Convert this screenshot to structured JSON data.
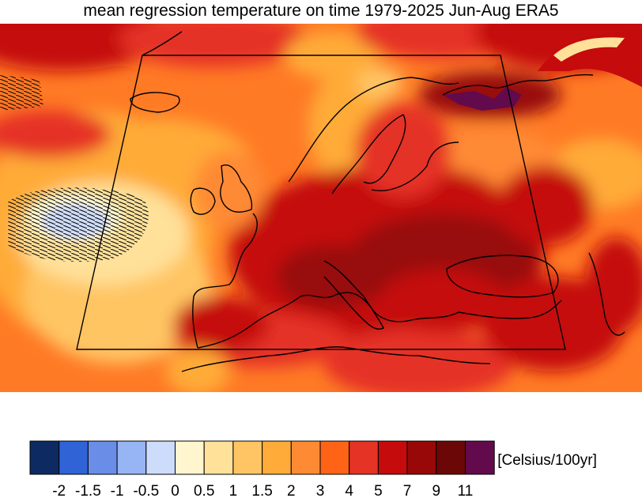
{
  "title": "mean regression temperature on time 1979-2025 Jun-Aug ERA5",
  "colorbar": {
    "unit_label": "[Celsius/100yr]",
    "tick_labels": [
      "-2",
      "-1.5",
      "-1",
      "-0.5",
      "0",
      "0.5",
      "1",
      "1.5",
      "2",
      "3",
      "4",
      "5",
      "7",
      "9",
      "11"
    ],
    "colors": [
      "#0d2a62",
      "#2f63d6",
      "#6a8ee8",
      "#97b4f4",
      "#cddcfb",
      "#fff6cf",
      "#ffe19a",
      "#ffc564",
      "#ffab39",
      "#ff8a34",
      "#ff6416",
      "#e53325",
      "#c50b0b",
      "#980808",
      "#6c0707",
      "#620a4c"
    ]
  },
  "map": {
    "region_box": "Europe",
    "hatching_note": "stippled areas",
    "palette": {
      "ocean_low": "#ff7a25",
      "land_high": "#b40000",
      "cool_patch": "#cddcfb"
    }
  }
}
